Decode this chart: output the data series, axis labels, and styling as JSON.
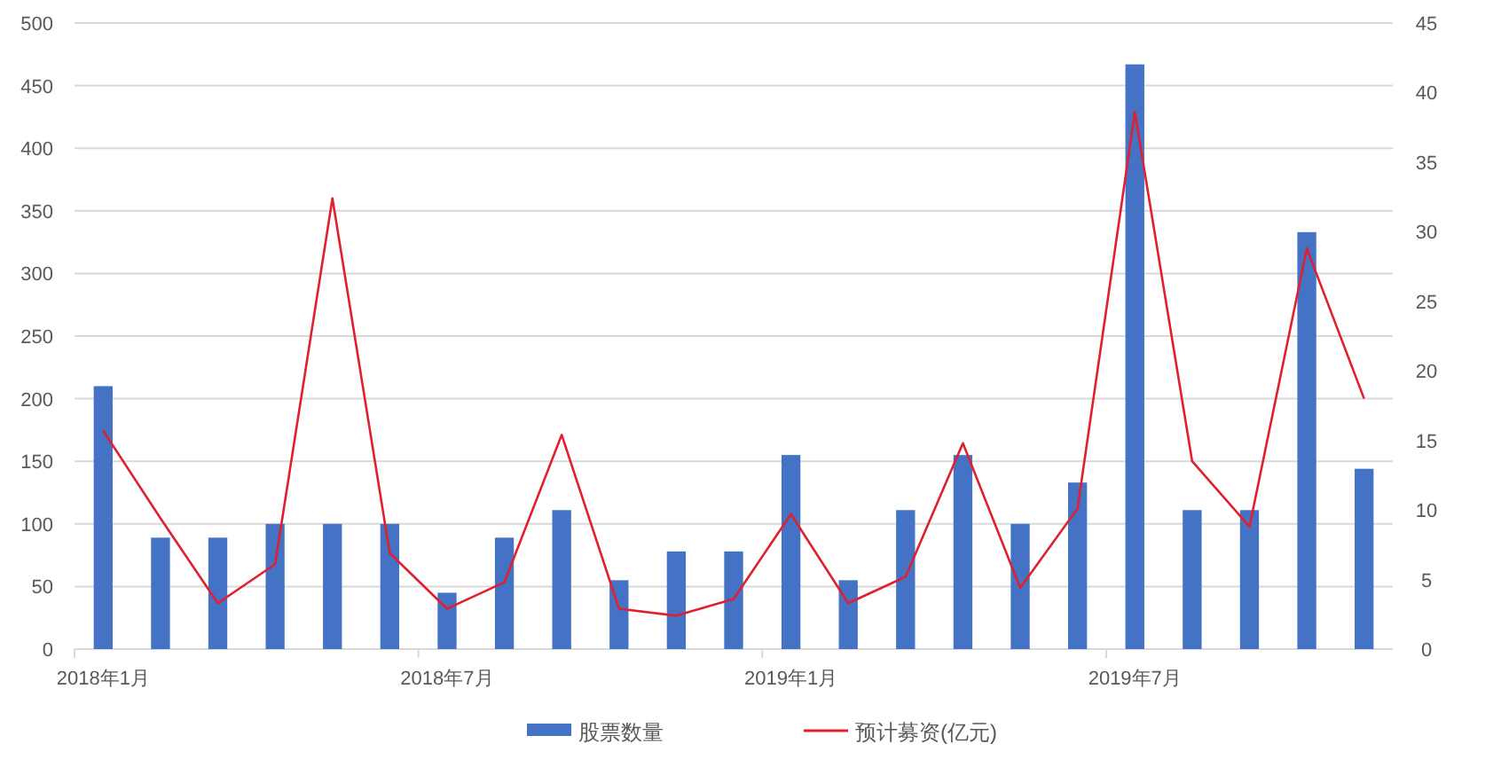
{
  "chart_data": {
    "type": "bar",
    "categories": [
      "2018年1月",
      null,
      null,
      null,
      null,
      null,
      "2018年7月",
      null,
      null,
      null,
      null,
      null,
      "2019年1月",
      null,
      null,
      null,
      null,
      null,
      "2019年7月",
      null,
      null,
      null,
      null
    ],
    "series": [
      {
        "name": "股票数量",
        "color": "#4472c4",
        "values": [
          210,
          89,
          89,
          100,
          100,
          100,
          45,
          89,
          111,
          55,
          78,
          78,
          155,
          55,
          111,
          155,
          100,
          133,
          467,
          111,
          111,
          333,
          144
        ]
      },
      {
        "name": "预计募资(亿元)",
        "type": "line",
        "axis": "y2",
        "color": "#e0202e",
        "values": [
          15.7,
          9.4,
          3.3,
          6.1,
          32.4,
          6.9,
          2.9,
          4.8,
          15.4,
          2.9,
          2.4,
          3.6,
          9.7,
          3.3,
          5.2,
          14.8,
          4.4,
          10.1,
          38.6,
          13.5,
          8.8,
          28.8,
          18.0
        ]
      }
    ],
    "ylim": [
      0,
      500
    ],
    "yticks": [
      0,
      50,
      100,
      150,
      200,
      250,
      300,
      350,
      400,
      450,
      500
    ],
    "y2lim": [
      0,
      45
    ],
    "y2ticks": [
      0,
      5,
      10,
      15,
      20,
      25,
      30,
      35,
      40,
      45
    ],
    "grid": "y",
    "legend": "bottom"
  }
}
